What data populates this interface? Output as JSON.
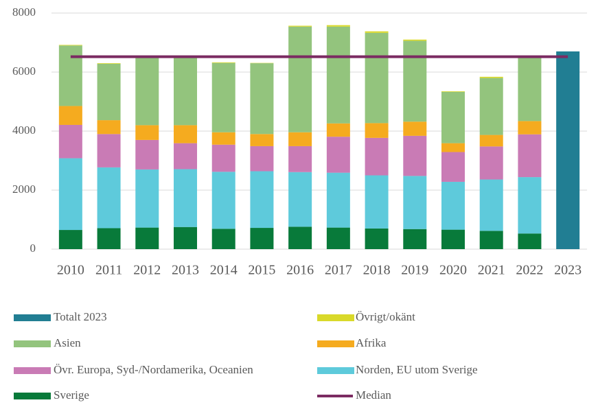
{
  "chart_data": {
    "type": "bar",
    "stacked": true,
    "categories": [
      "2010",
      "2011",
      "2012",
      "2013",
      "2014",
      "2015",
      "2016",
      "2017",
      "2018",
      "2019",
      "2020",
      "2021",
      "2022",
      "2023"
    ],
    "series": [
      {
        "name": "Totalt 2023",
        "color": "#217e93",
        "values": [
          null,
          null,
          null,
          null,
          null,
          null,
          null,
          null,
          null,
          null,
          null,
          null,
          null,
          6700
        ]
      },
      {
        "name": "Övrigt/okänt",
        "color": "#d9d92a",
        "values": [
          20,
          20,
          20,
          20,
          20,
          10,
          30,
          50,
          50,
          40,
          20,
          40,
          20,
          null
        ]
      },
      {
        "name": "Asien",
        "color": "#93c47d",
        "values": [
          2050,
          1910,
          2280,
          2280,
          2350,
          2400,
          3580,
          3280,
          3060,
          2740,
          1740,
          1930,
          2160,
          null
        ]
      },
      {
        "name": "Afrika",
        "color": "#f5ab1f",
        "values": [
          640,
          470,
          500,
          610,
          420,
          410,
          470,
          450,
          500,
          480,
          300,
          390,
          450,
          null
        ]
      },
      {
        "name": "Övr. Europa, Syd-/Nordamerika, Oceanien",
        "color": "#c97bb5",
        "values": [
          1130,
          1130,
          1000,
          880,
          920,
          850,
          880,
          1220,
          1270,
          1360,
          1010,
          1120,
          1450,
          null
        ]
      },
      {
        "name": "Norden, EU utom Sverige",
        "color": "#5ecadb",
        "values": [
          2430,
          2060,
          1970,
          1960,
          1930,
          1920,
          1850,
          1860,
          1800,
          1800,
          1620,
          1740,
          1910,
          null
        ]
      },
      {
        "name": "Sverige",
        "color": "#087a3a",
        "values": [
          650,
          710,
          730,
          750,
          690,
          720,
          760,
          730,
          700,
          680,
          660,
          620,
          530,
          null
        ]
      },
      {
        "name": "Median",
        "color": "#7b2b62",
        "type": "line",
        "values": [
          6520,
          6520,
          6520,
          6520,
          6520,
          6520,
          6520,
          6520,
          6520,
          6520,
          6520,
          6520,
          6520,
          6520
        ]
      }
    ],
    "ylim": [
      0,
      8000
    ],
    "yticks": [
      0,
      2000,
      4000,
      6000,
      8000
    ],
    "grid": true
  }
}
